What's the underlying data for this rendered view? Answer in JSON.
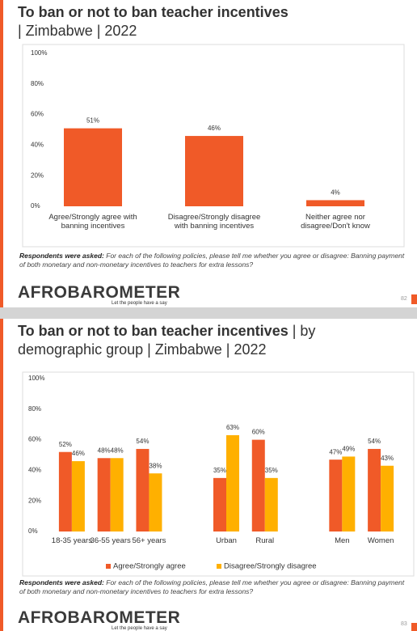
{
  "chart_data": [
    {
      "type": "bar",
      "title": "To ban or not to ban teacher incentives",
      "subtitle": "| Zimbabwe | 2022",
      "categories": [
        "Agree/Strongly agree with banning incentives",
        "Disagree/Strongly disagree with banning incentives",
        "Neither agree nor disagree/Don't know"
      ],
      "values": [
        51,
        46,
        4
      ],
      "value_labels": [
        "51%",
        "46%",
        "4%"
      ],
      "color": "#f05a28",
      "ylim": [
        0,
        100
      ],
      "yticks": [
        {
          "value": 0,
          "label": "0%"
        },
        {
          "value": 20,
          "label": "20%"
        },
        {
          "value": 40,
          "label": "40%"
        },
        {
          "value": 60,
          "label": "60%"
        },
        {
          "value": 80,
          "label": "80%"
        },
        {
          "value": 100,
          "label": "100%"
        }
      ],
      "grid": false,
      "note_label": "Respondents were asked:",
      "note": "For each of the following policies, please tell me whether you agree or disagree: Banning payment of both monetary and non-monetary incentives to teachers for extra lessons?",
      "brand": "AFROBAROMETER",
      "tagline": "Let the people have a say",
      "page_number": "82"
    },
    {
      "type": "grouped_bar",
      "title": "To ban or not to ban teacher incentives",
      "subtitle": "| by demographic group | Zimbabwe | 2022",
      "categories": [
        "18-35 years",
        "36-55 years",
        "56+ years",
        null,
        "Urban",
        "Rural",
        null,
        "Men",
        "Women"
      ],
      "series": [
        {
          "name": "Agree/Strongly agree",
          "color": "#f05a28",
          "values": [
            52,
            48,
            54,
            null,
            35,
            60,
            null,
            47,
            54
          ],
          "value_labels": [
            "52%",
            "48%",
            "54%",
            null,
            "35%",
            "60%",
            null,
            "47%",
            "54%"
          ]
        },
        {
          "name": "Disagree/Strongly disagree",
          "color": "#ffb000",
          "values": [
            46,
            48,
            38,
            null,
            63,
            35,
            null,
            49,
            43
          ],
          "value_labels": [
            "46%",
            "48%",
            "38%",
            null,
            "63%",
            "35%",
            null,
            "49%",
            "43%"
          ]
        }
      ],
      "ylim": [
        0,
        100
      ],
      "yticks": [
        {
          "value": 0,
          "label": "0%"
        },
        {
          "value": 20,
          "label": "20%"
        },
        {
          "value": 40,
          "label": "40%"
        },
        {
          "value": 60,
          "label": "60%"
        },
        {
          "value": 80,
          "label": "80%"
        },
        {
          "value": 100,
          "label": "100%"
        }
      ],
      "grid": false,
      "legend": "bottom",
      "note_label": "Respondents were asked:",
      "note": "For each of the following policies, please tell me whether you agree or disagree: Banning payment of both monetary and non-monetary incentives to teachers for extra lessons?",
      "brand": "AFROBAROMETER",
      "tagline": "Let the people have a say",
      "page_number": "83"
    }
  ]
}
